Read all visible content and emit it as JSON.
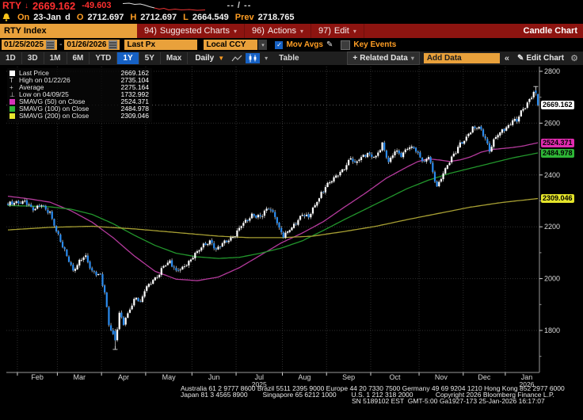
{
  "header": {
    "ticker": "RTY",
    "direction_arrow": "↓",
    "last_price": "2669.162",
    "change": "-49.603",
    "bid_ask": "-- / --",
    "sparkline": {
      "white_points": [
        [
          0,
          2.5
        ],
        [
          8,
          2
        ],
        [
          15,
          3.5
        ],
        [
          22,
          3
        ],
        [
          28,
          4.5
        ],
        [
          34,
          6.5
        ],
        [
          40,
          8
        ]
      ],
      "red_points": [
        [
          40,
          8
        ],
        [
          46,
          9.5
        ],
        [
          52,
          8.5
        ],
        [
          58,
          10.5
        ],
        [
          66,
          9.5
        ],
        [
          74,
          10.5
        ],
        [
          84,
          10
        ],
        [
          94,
          11
        ],
        [
          104,
          10.5
        ]
      ]
    },
    "session": {
      "on_label": "On",
      "date": "23-Jan",
      "flag": "d",
      "open_label": "O",
      "open": "2712.697",
      "high_label": "H",
      "high": "2712.697",
      "low_label": "L",
      "low": "2664.549",
      "prev_label": "Prev",
      "prev": "2718.765"
    }
  },
  "menubar": {
    "ticker_field": "RTY Index",
    "items": [
      {
        "num": "94)",
        "label": "Suggested Charts"
      },
      {
        "num": "96)",
        "label": "Actions"
      },
      {
        "num": "97)",
        "label": "Edit"
      }
    ],
    "chart_type": "Candle Chart"
  },
  "controls": {
    "date_from": "01/25/2025",
    "range_sep": "-",
    "date_to": "01/26/2026",
    "price_field": "Last Px",
    "currency": "Local CCY",
    "mov_avgs_label": "Mov Avgs",
    "key_events_label": "Key Events"
  },
  "toolbar": {
    "periods": [
      "1D",
      "3D",
      "1M",
      "6M",
      "YTD",
      "1Y",
      "5Y",
      "Max"
    ],
    "active_period": "1Y",
    "frequency": "Daily",
    "table_label": "Table",
    "related_data_label": "Related Data",
    "add_data_placeholder": "Add Data",
    "edit_chart_label": "Edit Chart"
  },
  "icons": {
    "down_small": "▾",
    "down_filled": "▼",
    "pencil": "✎",
    "gear": "⚙",
    "collapse": "«",
    "plus": "+",
    "check": "✓"
  },
  "legend": {
    "rows": [
      {
        "icon": "swatch",
        "color": "#ffffff",
        "label": "Last Price",
        "value": "2669.162"
      },
      {
        "icon": "glyph",
        "char": "T",
        "color": "#cccccc",
        "label": "High on 01/22/26",
        "value": "2735.104"
      },
      {
        "icon": "glyph",
        "char": "+",
        "color": "#cccccc",
        "label": "Average",
        "value": "2275.164"
      },
      {
        "icon": "glyph",
        "char": "⊥",
        "color": "#cccccc",
        "label": "Low on 04/09/25",
        "value": "1732.992"
      },
      {
        "icon": "swatch",
        "color": "#d632b8",
        "label": "SMAVG (50)  on Close",
        "value": "2524.371"
      },
      {
        "icon": "swatch",
        "color": "#2eb636",
        "label": "SMAVG (100)  on Close",
        "value": "2484.978"
      },
      {
        "icon": "swatch",
        "color": "#e8e82e",
        "label": "SMAVG (200)  on Close",
        "value": "2309.046"
      }
    ]
  },
  "chart_data": {
    "type": "candlestick",
    "security": "RTY Index",
    "frequency": "Daily",
    "range": {
      "from": "01/25/2025",
      "to": "01/26/2026"
    },
    "y_axis": {
      "major_ticks": [
        2800,
        2600,
        2400,
        2200,
        2000,
        1800
      ],
      "minor_ticks": [
        2700,
        2500,
        2300,
        2100,
        1900,
        1700
      ]
    },
    "months": [
      {
        "label": "Feb",
        "boundary_day": 4.5
      },
      {
        "label": "Mar",
        "boundary_day": 23.5
      },
      {
        "label": "Apr",
        "boundary_day": 44.5
      },
      {
        "label": "May",
        "boundary_day": 65.5
      },
      {
        "label": "Jun",
        "boundary_day": 87.5
      },
      {
        "label": "Jul",
        "boundary_day": 108.5,
        "year": "2025"
      },
      {
        "label": "Aug",
        "boundary_day": 130.5
      },
      {
        "label": "Sep",
        "boundary_day": 151.5
      },
      {
        "label": "Oct",
        "boundary_day": 172.5
      },
      {
        "label": "Nov",
        "boundary_day": 195.5
      },
      {
        "label": "Dec",
        "boundary_day": 216.5
      },
      {
        "label": "Jan",
        "boundary_day": 236.5,
        "year": "2026"
      }
    ],
    "stats": {
      "last": 2669.162,
      "high": 2735.104,
      "high_date": "01/22/26",
      "high_day": 251,
      "average": 2275.164,
      "low": 1732.992,
      "low_date": "04/09/25",
      "low_day": 51
    },
    "candles": {
      "days": 253,
      "close_anchors": [
        [
          0,
          2282
        ],
        [
          4,
          2295
        ],
        [
          8,
          2300
        ],
        [
          12,
          2262
        ],
        [
          16,
          2290
        ],
        [
          20,
          2252
        ],
        [
          23,
          2180
        ],
        [
          26,
          2128
        ],
        [
          28,
          2092
        ],
        [
          31,
          2028
        ],
        [
          34,
          2062
        ],
        [
          37,
          2088
        ],
        [
          40,
          2032
        ],
        [
          44,
          2008
        ],
        [
          46,
          1945
        ],
        [
          48,
          1828
        ],
        [
          50,
          1788
        ],
        [
          51,
          1762
        ],
        [
          52,
          1812
        ],
        [
          53,
          1868
        ],
        [
          55,
          1822
        ],
        [
          57,
          1862
        ],
        [
          59,
          1902
        ],
        [
          61,
          1932
        ],
        [
          63,
          1912
        ],
        [
          65,
          1952
        ],
        [
          68,
          1982
        ],
        [
          71,
          2012
        ],
        [
          74,
          2052
        ],
        [
          77,
          2062
        ],
        [
          80,
          2028
        ],
        [
          83,
          2048
        ],
        [
          87,
          2068
        ],
        [
          90,
          2102
        ],
        [
          93,
          2132
        ],
        [
          96,
          2148
        ],
        [
          99,
          2106
        ],
        [
          102,
          2136
        ],
        [
          105,
          2156
        ],
        [
          108,
          2166
        ],
        [
          112,
          2212
        ],
        [
          116,
          2248
        ],
        [
          120,
          2236
        ],
        [
          124,
          2272
        ],
        [
          127,
          2248
        ],
        [
          129,
          2195
        ],
        [
          131,
          2158
        ],
        [
          134,
          2188
        ],
        [
          137,
          2218
        ],
        [
          140,
          2248
        ],
        [
          143,
          2232
        ],
        [
          146,
          2282
        ],
        [
          149,
          2332
        ],
        [
          151,
          2356
        ],
        [
          154,
          2376
        ],
        [
          157,
          2402
        ],
        [
          160,
          2432
        ],
        [
          163,
          2466
        ],
        [
          165,
          2442
        ],
        [
          168,
          2466
        ],
        [
          171,
          2486
        ],
        [
          175,
          2466
        ],
        [
          178,
          2516
        ],
        [
          181,
          2452
        ],
        [
          184,
          2496
        ],
        [
          187,
          2472
        ],
        [
          190,
          2502
        ],
        [
          193,
          2512
        ],
        [
          195,
          2482
        ],
        [
          198,
          2446
        ],
        [
          200,
          2472
        ],
        [
          202,
          2412
        ],
        [
          204,
          2356
        ],
        [
          206,
          2392
        ],
        [
          209,
          2432
        ],
        [
          212,
          2476
        ],
        [
          215,
          2522
        ],
        [
          218,
          2546
        ],
        [
          221,
          2576
        ],
        [
          224,
          2586
        ],
        [
          227,
          2546
        ],
        [
          229,
          2496
        ],
        [
          232,
          2542
        ],
        [
          235,
          2572
        ],
        [
          238,
          2592
        ],
        [
          240,
          2616
        ],
        [
          242,
          2602
        ],
        [
          244,
          2642
        ],
        [
          246,
          2662
        ],
        [
          248,
          2696
        ],
        [
          250,
          2722
        ],
        [
          251,
          2716
        ],
        [
          252,
          2669.162
        ]
      ],
      "pinned": {
        "51": [
          1798,
          1806,
          1732.992,
          1762
        ],
        "251": [
          2726,
          2735.104,
          2706,
          2716
        ],
        "252": [
          2712.697,
          2712.697,
          2664.549,
          2669.162
        ]
      }
    },
    "smavg": [
      {
        "name": "SMAVG (50) on Close",
        "window": 50,
        "line_color": "#b43a9c",
        "badge_color": "#e02cb0",
        "last": 2524.371,
        "anchors": [
          [
            0,
            2318
          ],
          [
            10,
            2308
          ],
          [
            20,
            2295
          ],
          [
            30,
            2262
          ],
          [
            40,
            2218
          ],
          [
            50,
            2158
          ],
          [
            60,
            2088
          ],
          [
            70,
            2028
          ],
          [
            80,
            1998
          ],
          [
            90,
            1992
          ],
          [
            100,
            2006
          ],
          [
            110,
            2042
          ],
          [
            120,
            2090
          ],
          [
            130,
            2138
          ],
          [
            140,
            2176
          ],
          [
            150,
            2220
          ],
          [
            160,
            2276
          ],
          [
            170,
            2330
          ],
          [
            180,
            2388
          ],
          [
            190,
            2432
          ],
          [
            195,
            2452
          ],
          [
            200,
            2462
          ],
          [
            205,
            2458
          ],
          [
            210,
            2452
          ],
          [
            215,
            2458
          ],
          [
            220,
            2470
          ],
          [
            225,
            2488
          ],
          [
            230,
            2498
          ],
          [
            235,
            2502
          ],
          [
            240,
            2506
          ],
          [
            245,
            2512
          ],
          [
            252,
            2524.371
          ]
        ]
      },
      {
        "name": "SMAVG (100) on Close",
        "window": 100,
        "line_color": "#22962c",
        "badge_color": "#2eb636",
        "last": 2484.978,
        "anchors": [
          [
            0,
            2282
          ],
          [
            10,
            2280
          ],
          [
            20,
            2277
          ],
          [
            30,
            2268
          ],
          [
            40,
            2248
          ],
          [
            50,
            2212
          ],
          [
            60,
            2168
          ],
          [
            70,
            2128
          ],
          [
            80,
            2098
          ],
          [
            90,
            2084
          ],
          [
            100,
            2078
          ],
          [
            110,
            2082
          ],
          [
            120,
            2098
          ],
          [
            130,
            2118
          ],
          [
            140,
            2146
          ],
          [
            150,
            2186
          ],
          [
            160,
            2228
          ],
          [
            170,
            2268
          ],
          [
            180,
            2308
          ],
          [
            190,
            2348
          ],
          [
            200,
            2380
          ],
          [
            210,
            2406
          ],
          [
            220,
            2426
          ],
          [
            230,
            2446
          ],
          [
            240,
            2466
          ],
          [
            252,
            2484.978
          ]
        ]
      },
      {
        "name": "SMAVG (200) on Close",
        "window": 200,
        "line_color": "#a8a033",
        "badge_color": "#e4e42a",
        "last": 2309.046,
        "anchors": [
          [
            0,
            2188
          ],
          [
            20,
            2198
          ],
          [
            40,
            2202
          ],
          [
            60,
            2192
          ],
          [
            80,
            2178
          ],
          [
            100,
            2164
          ],
          [
            115,
            2158
          ],
          [
            130,
            2158
          ],
          [
            145,
            2164
          ],
          [
            160,
            2182
          ],
          [
            175,
            2202
          ],
          [
            190,
            2228
          ],
          [
            205,
            2252
          ],
          [
            220,
            2276
          ],
          [
            235,
            2294
          ],
          [
            252,
            2309.046
          ]
        ]
      }
    ],
    "last_price_badge": {
      "value": "2669.162",
      "bg": "#ffffff"
    },
    "colors": {
      "up": "#ffffff",
      "down": "#2b8cf0",
      "wick": "#c4c4c4",
      "grid": "#2e2e2e",
      "axis": "#9a9a9a",
      "tick_label": "#dcdcdc"
    }
  },
  "footer": {
    "line1": "Australia 61 2 9777 8600 Brazil 5511 2395 9000 Europe 44 20 7330 7500 Germany 49 69 9204 1210 Hong Kong 852 2977 6000",
    "line2": "Japan 81 3 4565 8900        Singapore 65 6212 1000        U.S. 1 212 318 2000            Copyright 2026 Bloomberg Finance L.P.",
    "line3": "SN 5189102 EST  GMT-5:00 Ga1927-173 25-Jan-2026 16:17:07"
  }
}
